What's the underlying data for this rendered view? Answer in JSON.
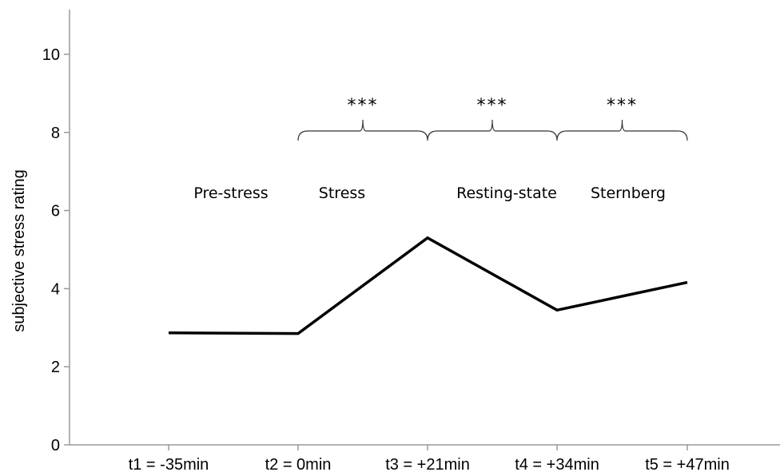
{
  "chart_data": {
    "type": "line",
    "title": "",
    "xlabel": "",
    "ylabel": "subjective stress rating",
    "categories": [
      "t1 = -35min",
      "t2 = 0min",
      "t3 = +21min",
      "t4 = +34min",
      "t5 = +47min"
    ],
    "values": [
      2.87,
      2.85,
      5.3,
      3.45,
      4.16
    ],
    "ylim": [
      0,
      11.1
    ],
    "yticks": [
      0,
      2,
      4,
      6,
      8,
      10
    ],
    "grid": false,
    "line_color": "#000000",
    "phase_labels": [
      "Pre-stress",
      "Stress",
      "Resting-state",
      "Sternberg"
    ],
    "significance": [
      {
        "from": 1,
        "to": 2,
        "label": "***"
      },
      {
        "from": 2,
        "to": 3,
        "label": "***"
      },
      {
        "from": 3,
        "to": 4,
        "label": "***"
      }
    ]
  }
}
